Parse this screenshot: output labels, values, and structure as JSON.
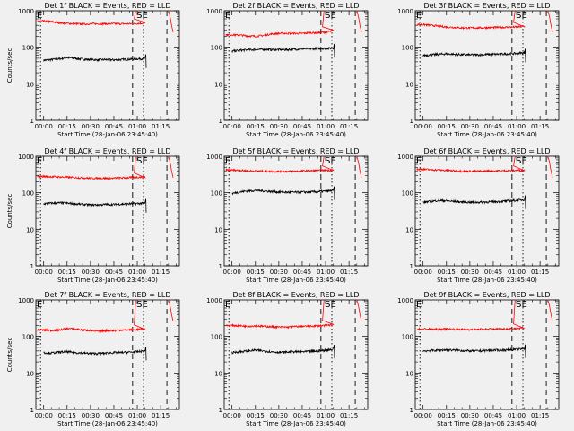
{
  "chart_data": [
    {
      "type": "line",
      "title": "Det 1f BLACK = Events, RED = LLD",
      "xlabel": "Start Time (28-Jan-06 23:45:40)",
      "ylabel": "Counts/sec",
      "yscale": "log",
      "ylim": [
        1,
        1000
      ],
      "x_ticks": [
        "00:00",
        "00:15",
        "00:30",
        "00:45",
        "01:00",
        "01:15"
      ],
      "y_ticks": [
        "1",
        "10",
        "100",
        "1000"
      ],
      "annotations": [
        "E",
        "SE"
      ],
      "series": [
        {
          "color": "#000000",
          "x": [
            0,
            5,
            10,
            15,
            20,
            25,
            30,
            35,
            40,
            45,
            50,
            55,
            60,
            65
          ],
          "y": [
            44,
            46,
            48,
            52,
            50,
            47,
            46,
            45,
            46,
            45,
            46,
            47,
            48,
            49
          ]
        },
        {
          "color": "#ff0000",
          "x": [
            0,
            5,
            10,
            15,
            20,
            25,
            30,
            35,
            40,
            45,
            50,
            55,
            60,
            65
          ],
          "y": [
            520,
            500,
            470,
            450,
            440,
            430,
            440,
            440,
            440,
            440,
            440,
            440,
            450,
            460
          ]
        }
      ]
    },
    {
      "type": "line",
      "title": "Det 2f BLACK = Events, RED = LLD",
      "xlabel": "Start Time (28-Jan-06 23:45:40)",
      "ylabel": "",
      "yscale": "log",
      "ylim": [
        1,
        1000
      ],
      "x_ticks": [
        "00:00",
        "00:15",
        "00:30",
        "00:45",
        "01:00",
        "01:15"
      ],
      "y_ticks": [
        "1",
        "10",
        "100",
        "1000"
      ],
      "annotations": [
        "E",
        "SE"
      ],
      "series": [
        {
          "color": "#000000",
          "x": [
            0,
            5,
            10,
            15,
            20,
            25,
            30,
            35,
            40,
            45,
            50,
            55,
            60,
            65
          ],
          "y": [
            78,
            82,
            85,
            86,
            88,
            86,
            86,
            86,
            88,
            90,
            90,
            92,
            93,
            95
          ]
        },
        {
          "color": "#ff0000",
          "x": [
            0,
            5,
            10,
            15,
            20,
            25,
            30,
            35,
            40,
            45,
            50,
            55,
            60,
            65
          ],
          "y": [
            220,
            215,
            205,
            200,
            210,
            230,
            240,
            240,
            240,
            240,
            250,
            250,
            260,
            280
          ]
        }
      ]
    },
    {
      "type": "line",
      "title": "Det 3f BLACK = Events, RED = LLD",
      "xlabel": "Start Time (28-Jan-06 23:45:40)",
      "ylabel": "",
      "yscale": "log",
      "ylim": [
        1,
        1000
      ],
      "x_ticks": [
        "00:00",
        "00:15",
        "00:30",
        "00:45",
        "01:00",
        "01:15"
      ],
      "y_ticks": [
        "1",
        "10",
        "100",
        "1000"
      ],
      "annotations": [
        "E",
        "SE"
      ],
      "series": [
        {
          "color": "#000000",
          "x": [
            0,
            5,
            10,
            15,
            20,
            25,
            30,
            35,
            40,
            45,
            50,
            55,
            60,
            65
          ],
          "y": [
            60,
            62,
            64,
            66,
            64,
            63,
            62,
            62,
            63,
            64,
            65,
            66,
            68,
            70
          ]
        },
        {
          "color": "#ff0000",
          "x": [
            0,
            5,
            10,
            15,
            20,
            25,
            30,
            35,
            40,
            45,
            50,
            55,
            60,
            65
          ],
          "y": [
            420,
            400,
            380,
            360,
            350,
            340,
            340,
            340,
            345,
            350,
            350,
            355,
            360,
            370
          ]
        }
      ]
    },
    {
      "type": "line",
      "title": "Det 4f BLACK = Events, RED = LLD",
      "xlabel": "Start Time (28-Jan-06 23:45:40)",
      "ylabel": "Counts/sec",
      "yscale": "log",
      "ylim": [
        1,
        1000
      ],
      "x_ticks": [
        "00:00",
        "00:15",
        "00:30",
        "00:45",
        "01:00",
        "01:15"
      ],
      "y_ticks": [
        "1",
        "10",
        "100",
        "1000"
      ],
      "annotations": [
        "E",
        "SE"
      ],
      "series": [
        {
          "color": "#000000",
          "x": [
            0,
            5,
            10,
            15,
            20,
            25,
            30,
            35,
            40,
            45,
            50,
            55,
            60,
            65
          ],
          "y": [
            50,
            52,
            53,
            52,
            50,
            48,
            47,
            47,
            48,
            48,
            49,
            50,
            51,
            52
          ]
        },
        {
          "color": "#ff0000",
          "x": [
            0,
            5,
            10,
            15,
            20,
            25,
            30,
            35,
            40,
            45,
            50,
            55,
            60,
            65
          ],
          "y": [
            280,
            275,
            270,
            265,
            260,
            255,
            250,
            250,
            250,
            250,
            255,
            260,
            265,
            270
          ]
        }
      ]
    },
    {
      "type": "line",
      "title": "Det 5f BLACK = Events, RED = LLD",
      "xlabel": "Start Time (28-Jan-06 23:45:40)",
      "ylabel": "",
      "yscale": "log",
      "ylim": [
        1,
        1000
      ],
      "x_ticks": [
        "00:00",
        "00:15",
        "00:30",
        "00:45",
        "01:00",
        "01:15"
      ],
      "y_ticks": [
        "1",
        "10",
        "100",
        "1000"
      ],
      "annotations": [
        "E",
        "SE"
      ],
      "series": [
        {
          "color": "#000000",
          "x": [
            0,
            5,
            10,
            15,
            20,
            25,
            30,
            35,
            40,
            45,
            50,
            55,
            60,
            65
          ],
          "y": [
            95,
            105,
            112,
            115,
            112,
            108,
            105,
            103,
            103,
            104,
            105,
            107,
            110,
            115
          ]
        },
        {
          "color": "#ff0000",
          "x": [
            0,
            5,
            10,
            15,
            20,
            25,
            30,
            35,
            40,
            45,
            50,
            55,
            60,
            65
          ],
          "y": [
            420,
            410,
            400,
            395,
            390,
            385,
            385,
            385,
            390,
            395,
            400,
            405,
            410,
            420
          ]
        }
      ]
    },
    {
      "type": "line",
      "title": "Det 6f BLACK = Events, RED = LLD",
      "xlabel": "Start Time (28-Jan-06 23:45:40)",
      "ylabel": "",
      "yscale": "log",
      "ylim": [
        1,
        1000
      ],
      "x_ticks": [
        "00:00",
        "00:15",
        "00:30",
        "00:45",
        "01:00",
        "01:15"
      ],
      "y_ticks": [
        "1",
        "10",
        "100",
        "1000"
      ],
      "annotations": [
        "E",
        "SE"
      ],
      "series": [
        {
          "color": "#000000",
          "x": [
            0,
            5,
            10,
            15,
            20,
            25,
            30,
            35,
            40,
            45,
            50,
            55,
            60,
            65
          ],
          "y": [
            55,
            58,
            62,
            60,
            58,
            56,
            55,
            55,
            56,
            57,
            58,
            60,
            62,
            65
          ]
        },
        {
          "color": "#ff0000",
          "x": [
            0,
            5,
            10,
            15,
            20,
            25,
            30,
            35,
            40,
            45,
            50,
            55,
            60,
            65
          ],
          "y": [
            440,
            430,
            420,
            410,
            400,
            390,
            390,
            390,
            395,
            400,
            400,
            405,
            410,
            420
          ]
        }
      ]
    },
    {
      "type": "line",
      "title": "Det 7f BLACK = Events, RED = LLD",
      "xlabel": "Start Time (28-Jan-06 23:45:40)",
      "ylabel": "Counts/sec",
      "yscale": "log",
      "ylim": [
        1,
        1000
      ],
      "x_ticks": [
        "00:00",
        "00:15",
        "00:30",
        "00:45",
        "01:00",
        "01:15"
      ],
      "y_ticks": [
        "1",
        "10",
        "100",
        "1000"
      ],
      "annotations": [
        "E",
        "SE"
      ],
      "series": [
        {
          "color": "#000000",
          "x": [
            0,
            5,
            10,
            15,
            20,
            25,
            30,
            35,
            40,
            45,
            50,
            55,
            60,
            65
          ],
          "y": [
            36,
            35,
            37,
            38,
            36,
            35,
            34,
            34,
            35,
            36,
            36,
            37,
            38,
            40
          ]
        },
        {
          "color": "#ff0000",
          "x": [
            0,
            5,
            10,
            15,
            20,
            25,
            30,
            35,
            40,
            45,
            50,
            55,
            60,
            65
          ],
          "y": [
            150,
            145,
            150,
            165,
            160,
            150,
            145,
            140,
            145,
            145,
            150,
            150,
            155,
            160
          ]
        }
      ]
    },
    {
      "type": "line",
      "title": "Det 8f BLACK = Events, RED = LLD",
      "xlabel": "Start Time (28-Jan-06 23:45:40)",
      "ylabel": "",
      "yscale": "log",
      "ylim": [
        1,
        1000
      ],
      "x_ticks": [
        "00:00",
        "00:15",
        "00:30",
        "00:45",
        "01:00",
        "01:15"
      ],
      "y_ticks": [
        "1",
        "10",
        "100",
        "1000"
      ],
      "annotations": [
        "E",
        "SE"
      ],
      "series": [
        {
          "color": "#000000",
          "x": [
            0,
            5,
            10,
            15,
            20,
            25,
            30,
            35,
            40,
            45,
            50,
            55,
            60,
            65
          ],
          "y": [
            36,
            38,
            40,
            42,
            40,
            38,
            37,
            37,
            38,
            38,
            39,
            40,
            42,
            45
          ]
        },
        {
          "color": "#ff0000",
          "x": [
            0,
            5,
            10,
            15,
            20,
            25,
            30,
            35,
            40,
            45,
            50,
            55,
            60,
            65
          ],
          "y": [
            200,
            195,
            190,
            195,
            190,
            185,
            180,
            180,
            185,
            190,
            190,
            195,
            200,
            210
          ]
        }
      ]
    },
    {
      "type": "line",
      "title": "Det 9f BLACK = Events, RED = LLD",
      "xlabel": "Start Time (28-Jan-06 23:45:40)",
      "ylabel": "",
      "yscale": "log",
      "ylim": [
        1,
        1000
      ],
      "x_ticks": [
        "00:00",
        "00:15",
        "00:30",
        "00:45",
        "01:00",
        "01:15"
      ],
      "y_ticks": [
        "1",
        "10",
        "100",
        "1000"
      ],
      "annotations": [
        "E",
        "SE"
      ],
      "series": [
        {
          "color": "#000000",
          "x": [
            0,
            5,
            10,
            15,
            20,
            25,
            30,
            35,
            40,
            45,
            50,
            55,
            60,
            65
          ],
          "y": [
            40,
            41,
            42,
            43,
            42,
            41,
            40,
            40,
            41,
            42,
            42,
            43,
            44,
            46
          ]
        },
        {
          "color": "#ff0000",
          "x": [
            0,
            5,
            10,
            15,
            20,
            25,
            30,
            35,
            40,
            45,
            50,
            55,
            60,
            65
          ],
          "y": [
            160,
            158,
            156,
            160,
            158,
            155,
            155,
            155,
            158,
            160,
            160,
            162,
            165,
            170
          ]
        }
      ]
    }
  ]
}
